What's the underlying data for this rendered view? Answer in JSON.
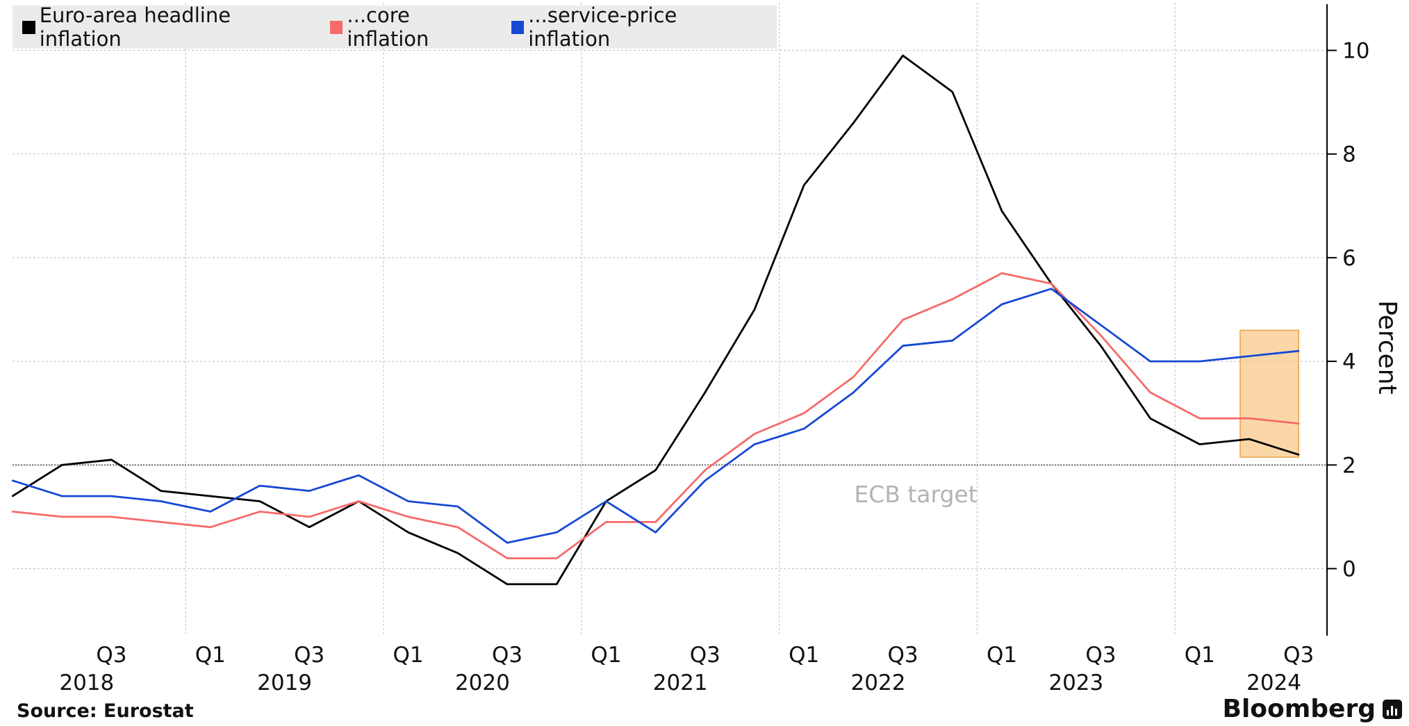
{
  "chart_data": {
    "type": "line",
    "xlabel": "",
    "ylabel": "Percent",
    "ylim": [
      -1.3,
      11.0
    ],
    "yticks": [
      0,
      2,
      4,
      6,
      8,
      10
    ],
    "grid": true,
    "legend_placement": "top-left",
    "quarter_tick_labels": [
      "Q3",
      "Q1",
      "Q3",
      "Q1",
      "Q3",
      "Q1",
      "Q3",
      "Q1",
      "Q3",
      "Q1",
      "Q3",
      "Q1",
      "Q3"
    ],
    "year_labels": [
      "2018",
      "2019",
      "2020",
      "2021",
      "2022",
      "2023",
      "2024"
    ],
    "x": [
      "2018 Q1",
      "2018 Q2",
      "2018 Q3",
      "2018 Q4",
      "2019 Q1",
      "2019 Q2",
      "2019 Q3",
      "2019 Q4",
      "2020 Q1",
      "2020 Q2",
      "2020 Q3",
      "2020 Q4",
      "2021 Q1",
      "2021 Q2",
      "2021 Q3",
      "2021 Q4",
      "2022 Q1",
      "2022 Q2",
      "2022 Q3",
      "2022 Q4",
      "2023 Q1",
      "2023 Q2",
      "2023 Q3",
      "2023 Q4",
      "2024 Q1",
      "2024 Q2",
      "2024 Q3"
    ],
    "series": [
      {
        "name": "Euro-area headline inflation",
        "color": "#000000",
        "values": [
          1.4,
          2.0,
          2.1,
          1.5,
          1.4,
          1.3,
          0.8,
          1.3,
          0.7,
          0.3,
          -0.3,
          -0.3,
          1.3,
          1.9,
          3.4,
          5.0,
          7.4,
          8.6,
          9.9,
          9.2,
          6.9,
          5.5,
          4.3,
          2.9,
          2.4,
          2.5,
          2.2
        ]
      },
      {
        "name": "...core inflation",
        "color": "#f66a6a",
        "values": [
          1.1,
          1.0,
          1.0,
          0.9,
          0.8,
          1.1,
          1.0,
          1.3,
          1.0,
          0.8,
          0.2,
          0.2,
          0.9,
          0.9,
          1.9,
          2.6,
          3.0,
          3.7,
          4.8,
          5.2,
          5.7,
          5.5,
          4.5,
          3.4,
          2.9,
          2.9,
          2.8
        ]
      },
      {
        "name": "...service-price inflation",
        "color": "#1648d4",
        "values": [
          1.7,
          1.4,
          1.4,
          1.3,
          1.1,
          1.6,
          1.5,
          1.8,
          1.3,
          1.2,
          0.5,
          0.7,
          1.3,
          0.7,
          1.7,
          2.4,
          2.7,
          3.4,
          4.3,
          4.4,
          5.1,
          5.4,
          4.7,
          4.0,
          4.0,
          4.1,
          4.2
        ]
      }
    ],
    "reference_line": {
      "value": 2,
      "label": "ECB target"
    },
    "highlight": {
      "x_from": "2024 Q2",
      "x_to": "2024 Q3",
      "y_from": 2.15,
      "y_to": 4.6,
      "color": "#f9c98a"
    }
  },
  "footer": {
    "source": "Source: Eurostat",
    "brand": "Bloomberg"
  }
}
